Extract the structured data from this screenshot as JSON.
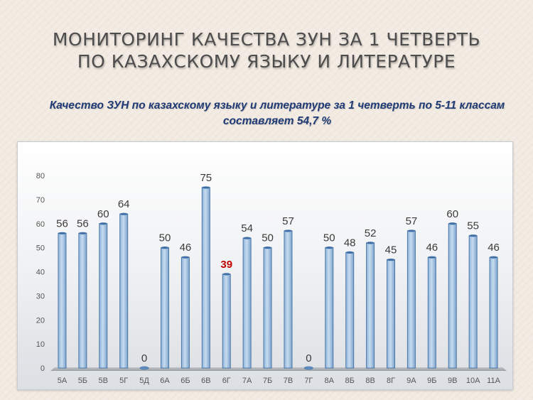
{
  "slide": {
    "title_line1": "МОНИТОРИНГ  КАЧЕСТВА ЗУН ЗА 1  ЧЕТВЕРТЬ",
    "title_line2": "ПО КАЗАХСКОМУ ЯЗЫКУ И ЛИТЕРАТУРЕ",
    "subtitle_line1": "Качество ЗУН по казахскому языку и литературе за 1 четверть  по 5-11 классам",
    "subtitle_line2": "составляет  54,7 %"
  },
  "chart_data": {
    "type": "bar",
    "title": "",
    "xlabel": "",
    "ylabel": "",
    "categories": [
      "5А",
      "5Б",
      "5В",
      "5Г",
      "5Д",
      "6А",
      "6Б",
      "6В",
      "6Г",
      "7А",
      "7Б",
      "7В",
      "7Г",
      "8А",
      "8Б",
      "8В",
      "8Г",
      "9А",
      "9Б",
      "9В",
      "10А",
      "11А"
    ],
    "values": [
      56,
      56,
      60,
      64,
      0,
      50,
      46,
      75,
      39,
      54,
      50,
      57,
      0,
      50,
      48,
      52,
      45,
      57,
      46,
      60,
      55,
      46
    ],
    "ylim": [
      0,
      80
    ],
    "yticks": [
      0,
      10,
      20,
      30,
      40,
      50,
      60,
      70,
      80
    ],
    "grid": false,
    "legend": "none",
    "bar_color": "#a9c6e4",
    "bar_edge_color": "#4a76a8",
    "label_color": "#3a3a3a",
    "highlight_label_color": "#c00000",
    "highlight_category": "6Г"
  }
}
